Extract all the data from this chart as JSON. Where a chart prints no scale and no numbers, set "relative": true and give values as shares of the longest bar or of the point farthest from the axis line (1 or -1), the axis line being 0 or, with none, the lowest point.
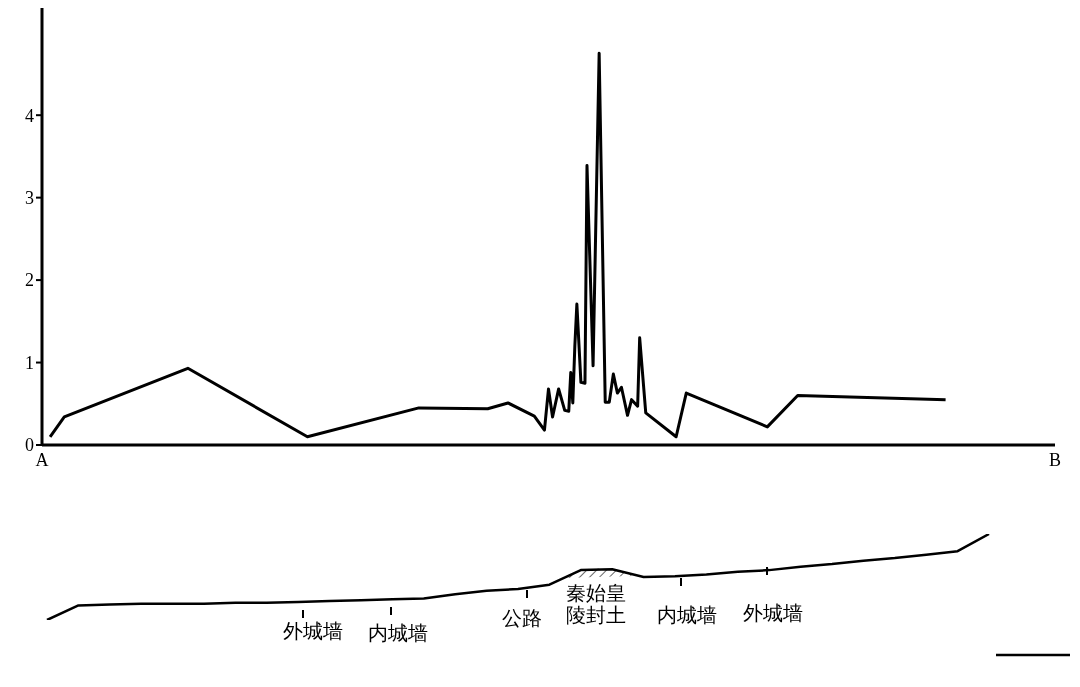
{
  "chart_data": [
    {
      "type": "line",
      "ylim": [
        0,
        5.3
      ],
      "yticks": [
        0,
        1,
        2,
        3,
        4
      ],
      "color": "#000000",
      "marker": "none",
      "line_style": "solid",
      "categories": [
        "A",
        null,
        null,
        null,
        null,
        null,
        null,
        null,
        null,
        null,
        null,
        null,
        null,
        null,
        null,
        null,
        null,
        null,
        null,
        null,
        null,
        null,
        null,
        null,
        null,
        null,
        null,
        null,
        null,
        null,
        null,
        null,
        null,
        null,
        null,
        null,
        null,
        null,
        null,
        null,
        null,
        null,
        null,
        null,
        null,
        null,
        null,
        null,
        null,
        null,
        null,
        null,
        null,
        null,
        null,
        null,
        null,
        null,
        null,
        null,
        null,
        null,
        null,
        null,
        null,
        null,
        null,
        null,
        null,
        null,
        null,
        null,
        null,
        null,
        null,
        null,
        null,
        null,
        null,
        null,
        null,
        null,
        null,
        null,
        null,
        null,
        null,
        null,
        null,
        null,
        null,
        null,
        null,
        null,
        null,
        null,
        null,
        null,
        null,
        null,
        null,
        null,
        null,
        null,
        null,
        null,
        null,
        null,
        null,
        null,
        null,
        null,
        null,
        null,
        null,
        null,
        null,
        null,
        null,
        null,
        null,
        null,
        null,
        null,
        null,
        null,
        null,
        null,
        null,
        null,
        null,
        null,
        null,
        null,
        null,
        null,
        null,
        null,
        null,
        null,
        null,
        null,
        null,
        null,
        null,
        null,
        null,
        null,
        null,
        null,
        null,
        null,
        null,
        null,
        null,
        null,
        null,
        null,
        null,
        null,
        null,
        null,
        null,
        null,
        null,
        null,
        null,
        null,
        null,
        null,
        null,
        null,
        null,
        null,
        null,
        null,
        null,
        null,
        null,
        null,
        null,
        null,
        null,
        null,
        null,
        null,
        null,
        null,
        null,
        null,
        null,
        null,
        null,
        null,
        null,
        null,
        null,
        null,
        null,
        null,
        null,
        null,
        null,
        null,
        null,
        null,
        null,
        null,
        null,
        null,
        null,
        null,
        null,
        null,
        null,
        null,
        null,
        null,
        null,
        null,
        null,
        null,
        null,
        null,
        null,
        null,
        null,
        null,
        null,
        null,
        null,
        null,
        null,
        null,
        null,
        null,
        null,
        null,
        null,
        null,
        null,
        null,
        null,
        null,
        null,
        null,
        null,
        null,
        null,
        null,
        null,
        null,
        null,
        null,
        null,
        null,
        null,
        null,
        null,
        null,
        null,
        null,
        null,
        null,
        null,
        null,
        null,
        null,
        null,
        null,
        null,
        null,
        null,
        null,
        null,
        null,
        null,
        null,
        null,
        null,
        null,
        null,
        null,
        null,
        null,
        null,
        null,
        null,
        null,
        null,
        null,
        null,
        null,
        null,
        null,
        null,
        null,
        null,
        null,
        null,
        null,
        null,
        null,
        null,
        null,
        null,
        null,
        null,
        null,
        null,
        null,
        null,
        null,
        null,
        null,
        null,
        null,
        null,
        null,
        null,
        null,
        null,
        null,
        null,
        null,
        null,
        null,
        null,
        null,
        null,
        null,
        null,
        null,
        null,
        null,
        null,
        null,
        null,
        null,
        null,
        null,
        null,
        null,
        null,
        null,
        null,
        null,
        null,
        null,
        null,
        null,
        null,
        null,
        null,
        null,
        null,
        null,
        null,
        null,
        null,
        null,
        null,
        null,
        null,
        null,
        null,
        null,
        null,
        null,
        null,
        null,
        null,
        null,
        null,
        null,
        null,
        null,
        null,
        null,
        null,
        null,
        null,
        null,
        null,
        null,
        null,
        null,
        null,
        null,
        null,
        null,
        null,
        null,
        null,
        null,
        null,
        null,
        null,
        null,
        null,
        null,
        null,
        null,
        null,
        null,
        null,
        null,
        null,
        null,
        null,
        null,
        null,
        null,
        null,
        null,
        null,
        null,
        null,
        null,
        null,
        null,
        null,
        null,
        null,
        null,
        null,
        null,
        null,
        null,
        null,
        null,
        null,
        null,
        null,
        null,
        null,
        null,
        null,
        null,
        null,
        null,
        null,
        null,
        null,
        null,
        null,
        null,
        null,
        null,
        null,
        null,
        null,
        null,
        null,
        null,
        null,
        null,
        null,
        null,
        null,
        null,
        null,
        null,
        null,
        null,
        null,
        null,
        null,
        null,
        null,
        null,
        null,
        null,
        null,
        null,
        null,
        null,
        null,
        null,
        null,
        null,
        null,
        null,
        null,
        null,
        null,
        null,
        null,
        null,
        null,
        null,
        null,
        null,
        null,
        null,
        null,
        null,
        null,
        null,
        null,
        "B"
      ],
      "values": [
        null,
        null,
        null,
        null,
        0.1,
        null,
        null,
        null,
        null,
        null,
        null,
        0.34,
        null,
        null,
        null,
        null,
        null,
        null,
        null,
        null,
        null,
        null,
        null,
        null,
        null,
        null,
        null,
        null,
        null,
        null,
        null,
        null,
        null,
        null,
        null,
        null,
        null,
        null,
        null,
        null,
        null,
        null,
        null,
        null,
        null,
        null,
        null,
        null,
        null,
        null,
        null,
        null,
        null,
        null,
        null,
        null,
        null,
        null,
        null,
        null,
        null,
        null,
        null,
        null,
        null,
        null,
        null,
        null,
        null,
        null,
        null,
        null,
        0.93,
        null,
        null,
        null,
        null,
        null,
        null,
        null,
        null,
        null,
        null,
        null,
        null,
        null,
        null,
        null,
        null,
        null,
        null,
        null,
        null,
        null,
        null,
        null,
        null,
        null,
        null,
        null,
        null,
        null,
        null,
        null,
        null,
        null,
        null,
        null,
        null,
        null,
        null,
        null,
        null,
        null,
        null,
        null,
        null,
        null,
        null,
        null,
        null,
        null,
        null,
        null,
        null,
        null,
        null,
        null,
        null,
        null,
        null,
        0.1,
        null,
        null,
        null,
        null,
        null,
        null,
        null,
        null,
        null,
        null,
        null,
        null,
        null,
        null,
        null,
        null,
        null,
        null,
        null,
        null,
        null,
        null,
        null,
        null,
        null,
        null,
        null,
        null,
        null,
        null,
        null,
        null,
        null,
        null,
        null,
        null,
        null,
        null,
        null,
        null,
        null,
        null,
        null,
        null,
        null,
        null,
        null,
        null,
        null,
        null,
        null,
        null,
        null,
        null,
        0.45,
        null,
        null,
        null,
        null,
        null,
        null,
        null,
        null,
        null,
        null,
        null,
        null,
        null,
        null,
        null,
        null,
        null,
        null,
        null,
        null,
        null,
        null,
        null,
        null,
        null,
        null,
        null,
        null,
        null,
        null,
        null,
        null,
        null,
        0.44,
        null,
        null,
        null,
        null,
        null,
        null,
        null,
        null,
        null,
        0.51,
        null,
        null,
        null,
        null,
        null,
        null,
        null,
        null,
        null,
        null,
        null,
        null,
        0.35,
        null,
        null,
        null,
        null,
        0.18,
        null,
        0.68,
        null,
        0.34,
        null,
        null,
        0.68,
        null,
        null,
        0.42,
        null,
        0.41,
        0.88,
        0.51,
        1.2,
        1.71,
        null,
        0.76,
        null,
        0.75,
        3.39,
        null,
        null,
        0.96,
        null,
        null,
        4.75,
        null,
        null,
        0.52,
        null,
        0.52,
        null,
        0.86,
        null,
        0.63,
        null,
        0.7,
        null,
        null,
        0.36,
        null,
        0.55,
        null,
        null,
        0.47,
        1.3,
        null,
        null,
        0.39,
        null,
        null,
        null,
        null,
        null,
        null,
        null,
        null,
        null,
        null,
        null,
        null,
        null,
        null,
        0.1,
        null,
        null,
        null,
        null,
        0.63,
        null,
        null,
        null,
        null,
        null,
        null,
        null,
        null,
        null,
        null,
        null,
        null,
        null,
        null,
        null,
        null,
        null,
        null,
        null,
        null,
        null,
        null,
        null,
        null,
        null,
        null,
        null,
        null,
        null,
        null,
        null,
        null,
        null,
        null,
        null,
        null,
        null,
        null,
        null,
        0.22,
        null,
        null,
        null,
        null,
        null,
        null,
        null,
        null,
        null,
        null,
        null,
        null,
        null,
        null,
        0.6,
        null,
        null,
        null,
        null,
        null,
        null,
        null,
        null,
        null,
        null,
        null,
        null,
        null,
        null,
        null,
        null,
        null,
        null,
        null,
        null,
        null,
        null,
        null,
        null,
        null,
        null,
        null,
        null,
        null,
        null,
        null,
        null,
        null,
        null,
        null,
        null,
        null,
        null,
        null,
        null,
        null,
        null,
        null,
        null,
        null,
        null,
        null,
        null,
        null,
        null,
        null,
        null,
        null,
        null,
        null,
        null,
        null,
        null,
        null,
        null,
        null,
        null,
        null,
        null,
        null,
        null,
        null,
        null,
        null,
        null,
        null,
        null,
        0.55,
        null,
        null,
        null,
        null,
        null,
        null,
        null,
        null,
        null,
        null,
        null,
        null,
        null,
        null,
        null,
        null,
        null,
        null,
        null,
        null,
        null,
        null,
        null,
        null,
        null,
        null,
        null,
        null,
        null,
        null,
        null,
        null,
        null,
        null,
        null,
        null,
        null,
        null,
        null,
        null,
        null,
        null,
        null,
        null,
        null,
        null,
        null,
        null,
        null,
        null,
        null,
        null,
        null,
        null
      ]
    },
    {
      "type": "line",
      "relative": true,
      "color": "#000000",
      "marker": "none",
      "line_style": "solid",
      "categories": [
        null,
        null,
        null,
        null,
        null,
        null,
        null,
        null,
        null,
        null,
        null,
        null,
        null,
        null,
        null,
        null,
        null,
        null,
        null,
        null,
        null,
        null,
        null,
        null,
        null,
        null,
        null,
        null,
        null,
        null,
        null
      ],
      "values": [
        0,
        0.17,
        0.18,
        0.19,
        0.19,
        0.19,
        0.2,
        0.2,
        0.21,
        0.22,
        0.23,
        0.24,
        0.25,
        0.3,
        0.34,
        0.36,
        0.41,
        0.58,
        0.59,
        0.5,
        0.51,
        0.53,
        0.56,
        0.58,
        0.62,
        0.65,
        0.69,
        0.72,
        0.76,
        0.8,
        1
      ],
      "annotations": [
        "外城墙",
        "内城墙",
        "公路",
        "秦始皇陵封土",
        "内城墙",
        "外城墙"
      ]
    }
  ]
}
